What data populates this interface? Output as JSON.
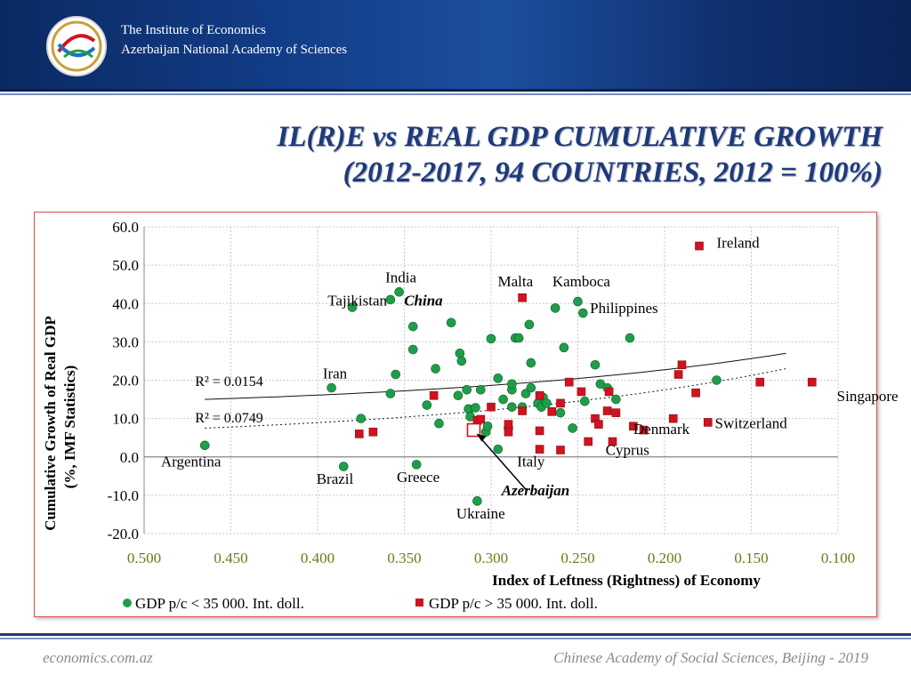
{
  "header": {
    "institute_line1": "The Institute of Economics",
    "institute_line2": "Azerbaijan National Academy of Sciences"
  },
  "slide": {
    "title_line1": "IL(R)E vs REAL GDP CUMULATIVE GROWTH",
    "title_line2": "(2012-2017, 94 COUNTRIES, 2012 = 100%)"
  },
  "footer": {
    "left": "economics.com.az",
    "right": "Chinese Academy of Social Sciences, Beijing - 2019"
  },
  "colors": {
    "green": "#1f9e4a",
    "red": "#d0131f",
    "accent_title": "#1f3a7a",
    "frame": "#d9534f"
  },
  "chart_data": {
    "type": "scatter",
    "xlabel": "Index of Leftness (Rightness) of Economy",
    "ylabel_line1": "Cumulative Growth of Real GDP",
    "ylabel_line2": "(%, IMF Statistics)",
    "xlim": [
      0.5,
      0.1
    ],
    "x_reversed": true,
    "ylim": [
      -20,
      60
    ],
    "x_ticks": [
      "0.500",
      "0.450",
      "0.400",
      "0.350",
      "0.300",
      "0.250",
      "0.200",
      "0.150",
      "0.100"
    ],
    "y_ticks": [
      "60.0",
      "50.0",
      "40.0",
      "30.0",
      "20.0",
      "10.0",
      "0.0",
      "-10.0",
      "-20.0"
    ],
    "grid": true,
    "legend_position": "bottom",
    "series": [
      {
        "name": "GDP p/c < 35 000. Int. doll.",
        "color": "#1f9e4a",
        "marker": "circle",
        "points": [
          [
            0.465,
            3
          ],
          [
            0.392,
            18
          ],
          [
            0.385,
            -2.5
          ],
          [
            0.38,
            39
          ],
          [
            0.375,
            10
          ],
          [
            0.358,
            16.5
          ],
          [
            0.358,
            41
          ],
          [
            0.355,
            21.5
          ],
          [
            0.353,
            43
          ],
          [
            0.345,
            34
          ],
          [
            0.345,
            28
          ],
          [
            0.343,
            -2
          ],
          [
            0.337,
            13.5
          ],
          [
            0.332,
            23
          ],
          [
            0.33,
            8.7
          ],
          [
            0.323,
            35
          ],
          [
            0.319,
            16
          ],
          [
            0.318,
            27
          ],
          [
            0.317,
            25
          ],
          [
            0.314,
            17.5
          ],
          [
            0.313,
            12.5
          ],
          [
            0.312,
            10.5
          ],
          [
            0.309,
            12.8
          ],
          [
            0.308,
            -11.5
          ],
          [
            0.306,
            17.5
          ],
          [
            0.303,
            6.5
          ],
          [
            0.302,
            8
          ],
          [
            0.3,
            30.8
          ],
          [
            0.296,
            20.5
          ],
          [
            0.296,
            2
          ],
          [
            0.293,
            15
          ],
          [
            0.29,
            7.5
          ],
          [
            0.288,
            13
          ],
          [
            0.288,
            17.5
          ],
          [
            0.288,
            19
          ],
          [
            0.286,
            31
          ],
          [
            0.284,
            31
          ],
          [
            0.282,
            13
          ],
          [
            0.28,
            16.5
          ],
          [
            0.278,
            34.5
          ],
          [
            0.277,
            24.5
          ],
          [
            0.277,
            18
          ],
          [
            0.273,
            14
          ],
          [
            0.271,
            13
          ],
          [
            0.27,
            15.5
          ],
          [
            0.268,
            14
          ],
          [
            0.263,
            38.8
          ],
          [
            0.26,
            11.5
          ],
          [
            0.258,
            28.5
          ],
          [
            0.253,
            7.5
          ],
          [
            0.25,
            40.5
          ],
          [
            0.247,
            37.5
          ],
          [
            0.246,
            14.5
          ],
          [
            0.24,
            24
          ],
          [
            0.237,
            19
          ],
          [
            0.233,
            18
          ],
          [
            0.228,
            15
          ],
          [
            0.22,
            31
          ],
          [
            0.17,
            20
          ]
        ]
      },
      {
        "name": "GDP p/c > 35 000. Int. doll.",
        "color": "#d0131f",
        "marker": "square",
        "points": [
          [
            0.376,
            6
          ],
          [
            0.368,
            6.5
          ],
          [
            0.333,
            16
          ],
          [
            0.308,
            9.5
          ],
          [
            0.306,
            9.8
          ],
          [
            0.3,
            13
          ],
          [
            0.29,
            8.5
          ],
          [
            0.29,
            6.5
          ],
          [
            0.282,
            41.5
          ],
          [
            0.282,
            12
          ],
          [
            0.272,
            16
          ],
          [
            0.272,
            6.8
          ],
          [
            0.272,
            2
          ],
          [
            0.265,
            11.8
          ],
          [
            0.26,
            14
          ],
          [
            0.26,
            1.8
          ],
          [
            0.255,
            19.5
          ],
          [
            0.248,
            17
          ],
          [
            0.244,
            4
          ],
          [
            0.24,
            10
          ],
          [
            0.238,
            8.5
          ],
          [
            0.233,
            12
          ],
          [
            0.232,
            17
          ],
          [
            0.23,
            4
          ],
          [
            0.228,
            11.5
          ],
          [
            0.195,
            10
          ],
          [
            0.192,
            21.5
          ],
          [
            0.19,
            24
          ],
          [
            0.182,
            16.7
          ],
          [
            0.175,
            9
          ],
          [
            0.145,
            19.5
          ],
          [
            0.115,
            19.5
          ],
          [
            0.212,
            7
          ],
          [
            0.218,
            8
          ],
          [
            0.18,
            55
          ]
        ]
      }
    ],
    "highlight": {
      "label": "Azerbaijan",
      "x": 0.31,
      "y": 7
    },
    "trend_solid": {
      "r2_label": "R² = 0.0154",
      "x_from": 0.465,
      "x_to": 0.13,
      "y_from": 15,
      "y_to": 27
    },
    "trend_dashed": {
      "r2_label": "R² = 0.0749",
      "x_from": 0.465,
      "x_to": 0.13,
      "y_from": 7.5,
      "y_to": 23
    },
    "annotations": [
      {
        "text": "Ireland",
        "x": 0.17,
        "y": 54.5,
        "anchor": "start"
      },
      {
        "text": "India",
        "x": 0.352,
        "y": 45.5,
        "anchor": "middle"
      },
      {
        "text": "Malta",
        "x": 0.286,
        "y": 44.5,
        "anchor": "middle"
      },
      {
        "text": "Kamboca",
        "x": 0.248,
        "y": 44.5,
        "anchor": "middle"
      },
      {
        "text": "Tajikistan",
        "x": 0.36,
        "y": 39.5,
        "anchor": "end"
      },
      {
        "text": "China",
        "x": 0.339,
        "y": 39.5,
        "anchor": "middle",
        "italic": true
      },
      {
        "text": "Philippines",
        "x": 0.243,
        "y": 37.5,
        "anchor": "start"
      },
      {
        "text": "Iran",
        "x": 0.39,
        "y": 20.5,
        "anchor": "middle"
      },
      {
        "text": "Singapore",
        "x": 0.083,
        "y": 14.5,
        "anchor": "middle"
      },
      {
        "text": "Switzerland",
        "x": 0.171,
        "y": 7.5,
        "anchor": "start"
      },
      {
        "text": "Denmark",
        "x": 0.218,
        "y": 6,
        "anchor": "start"
      },
      {
        "text": "Cyprus",
        "x": 0.234,
        "y": 0.5,
        "anchor": "start"
      },
      {
        "text": "Italy",
        "x": 0.285,
        "y": -2.5,
        "anchor": "start"
      },
      {
        "text": "Argentina",
        "x": 0.473,
        "y": -2.5,
        "anchor": "middle"
      },
      {
        "text": "Brazil",
        "x": 0.39,
        "y": -7,
        "anchor": "middle"
      },
      {
        "text": "Greece",
        "x": 0.342,
        "y": -6.5,
        "anchor": "middle"
      },
      {
        "text": "Azerbaijan",
        "x": 0.294,
        "y": -10,
        "anchor": "start",
        "italic": true
      },
      {
        "text": "Ukraine",
        "x": 0.306,
        "y": -16,
        "anchor": "middle"
      }
    ]
  }
}
